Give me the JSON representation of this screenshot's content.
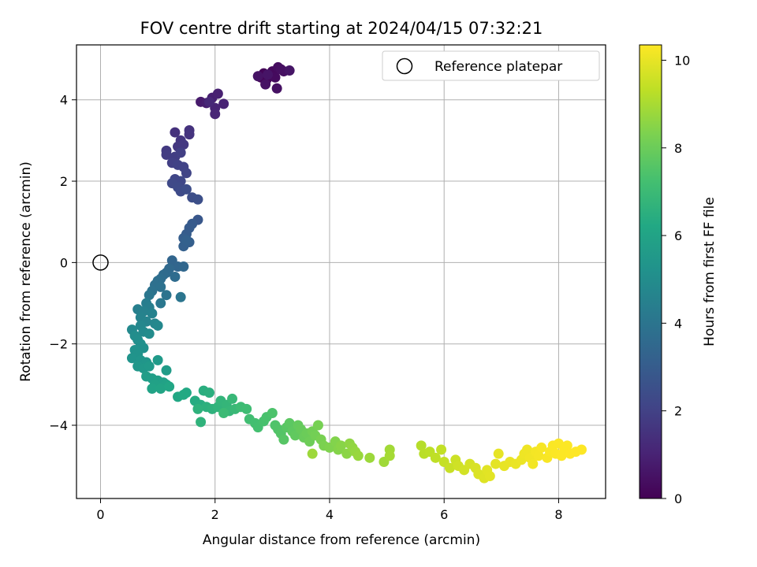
{
  "chart_data": {
    "type": "scatter",
    "title": "FOV centre drift starting at 2024/04/15 07:32:21",
    "xlabel": "Angular distance from reference (arcmin)",
    "ylabel": "Rotation from reference (arcmin)",
    "colorbar_label": "Hours from first FF file",
    "xlim": [
      -0.42,
      8.82
    ],
    "ylim": [
      -5.8,
      5.35
    ],
    "clim": [
      0,
      10.35
    ],
    "xticks": [
      0,
      2,
      4,
      6,
      8
    ],
    "yticks": [
      -4,
      -2,
      0,
      2,
      4
    ],
    "cticks": [
      0,
      2,
      4,
      6,
      8,
      10
    ],
    "grid": true,
    "colormap": "viridis",
    "legend": {
      "position": "top-right",
      "entries": [
        "Reference platepar"
      ]
    },
    "reference_point": {
      "x": 0,
      "y": 0
    },
    "series": [
      {
        "points": [
          {
            "x": 2.8,
            "y": 4.55,
            "t": 0.05
          },
          {
            "x": 2.85,
            "y": 4.65,
            "t": 0.1
          },
          {
            "x": 2.9,
            "y": 4.5,
            "t": 0.15
          },
          {
            "x": 2.95,
            "y": 4.6,
            "t": 0.2
          },
          {
            "x": 3.0,
            "y": 4.7,
            "t": 0.25
          },
          {
            "x": 3.05,
            "y": 4.55,
            "t": 0.3
          },
          {
            "x": 3.1,
            "y": 4.8,
            "t": 0.35
          },
          {
            "x": 3.15,
            "y": 4.75,
            "t": 0.4
          },
          {
            "x": 3.2,
            "y": 4.7,
            "t": 0.45
          },
          {
            "x": 3.08,
            "y": 4.28,
            "t": 0.48
          },
          {
            "x": 2.88,
            "y": 4.38,
            "t": 0.5
          },
          {
            "x": 2.75,
            "y": 4.58,
            "t": 0.52
          },
          {
            "x": 2.92,
            "y": 4.62,
            "t": 0.55
          },
          {
            "x": 3.3,
            "y": 4.72,
            "t": 0.58
          },
          {
            "x": 1.75,
            "y": 3.95,
            "t": 0.75
          },
          {
            "x": 1.85,
            "y": 3.92,
            "t": 0.85
          },
          {
            "x": 1.95,
            "y": 4.05,
            "t": 0.9
          },
          {
            "x": 2.05,
            "y": 4.15,
            "t": 0.95
          },
          {
            "x": 2.15,
            "y": 3.9,
            "t": 1.0
          },
          {
            "x": 2.0,
            "y": 3.8,
            "t": 1.05
          },
          {
            "x": 2.0,
            "y": 3.65,
            "t": 1.1
          },
          {
            "x": 1.9,
            "y": 3.95,
            "t": 1.15
          },
          {
            "x": 1.3,
            "y": 3.2,
            "t": 1.45
          },
          {
            "x": 1.55,
            "y": 3.25,
            "t": 1.5
          },
          {
            "x": 1.55,
            "y": 3.15,
            "t": 1.55
          },
          {
            "x": 1.4,
            "y": 3.0,
            "t": 1.6
          },
          {
            "x": 1.35,
            "y": 2.85,
            "t": 1.65
          },
          {
            "x": 1.45,
            "y": 2.9,
            "t": 1.7
          },
          {
            "x": 1.15,
            "y": 2.75,
            "t": 1.75
          },
          {
            "x": 1.15,
            "y": 2.65,
            "t": 1.8
          },
          {
            "x": 1.3,
            "y": 2.6,
            "t": 1.85
          },
          {
            "x": 1.4,
            "y": 2.7,
            "t": 1.9
          },
          {
            "x": 1.25,
            "y": 2.45,
            "t": 1.95
          },
          {
            "x": 1.35,
            "y": 2.4,
            "t": 2.0
          },
          {
            "x": 1.45,
            "y": 2.35,
            "t": 2.05
          },
          {
            "x": 1.5,
            "y": 2.2,
            "t": 2.1
          },
          {
            "x": 1.3,
            "y": 2.05,
            "t": 2.15
          },
          {
            "x": 1.4,
            "y": 2.0,
            "t": 2.2
          },
          {
            "x": 1.25,
            "y": 1.95,
            "t": 2.25
          },
          {
            "x": 1.35,
            "y": 1.85,
            "t": 2.3
          },
          {
            "x": 1.4,
            "y": 1.75,
            "t": 2.35
          },
          {
            "x": 1.5,
            "y": 1.8,
            "t": 2.4
          },
          {
            "x": 1.6,
            "y": 1.6,
            "t": 2.45
          },
          {
            "x": 1.7,
            "y": 1.55,
            "t": 2.5
          },
          {
            "x": 1.7,
            "y": 1.05,
            "t": 2.8
          },
          {
            "x": 1.6,
            "y": 0.95,
            "t": 2.9
          },
          {
            "x": 1.55,
            "y": 0.85,
            "t": 2.95
          },
          {
            "x": 1.5,
            "y": 0.7,
            "t": 3.0
          },
          {
            "x": 1.45,
            "y": 0.6,
            "t": 3.05
          },
          {
            "x": 1.55,
            "y": 0.5,
            "t": 3.1
          },
          {
            "x": 1.45,
            "y": 0.4,
            "t": 3.15
          },
          {
            "x": 1.5,
            "y": 0.55,
            "t": 3.2
          },
          {
            "x": 1.25,
            "y": 0.05,
            "t": 3.35
          },
          {
            "x": 1.35,
            "y": -0.1,
            "t": 3.4
          },
          {
            "x": 1.45,
            "y": -0.1,
            "t": 3.45
          },
          {
            "x": 1.2,
            "y": -0.15,
            "t": 3.5
          },
          {
            "x": 1.15,
            "y": -0.25,
            "t": 3.55
          },
          {
            "x": 1.1,
            "y": -0.3,
            "t": 3.6
          },
          {
            "x": 1.3,
            "y": -0.35,
            "t": 3.65
          },
          {
            "x": 1.05,
            "y": -0.4,
            "t": 3.7
          },
          {
            "x": 1.0,
            "y": -0.45,
            "t": 3.75
          },
          {
            "x": 0.95,
            "y": -0.55,
            "t": 3.8
          },
          {
            "x": 1.05,
            "y": -0.6,
            "t": 3.85
          },
          {
            "x": 0.9,
            "y": -0.7,
            "t": 3.9
          },
          {
            "x": 1.15,
            "y": -0.8,
            "t": 3.95
          },
          {
            "x": 1.4,
            "y": -0.85,
            "t": 4.0
          },
          {
            "x": 0.85,
            "y": -0.8,
            "t": 4.05
          },
          {
            "x": 1.05,
            "y": -1.0,
            "t": 4.1
          },
          {
            "x": 0.8,
            "y": -1.0,
            "t": 4.35
          },
          {
            "x": 0.85,
            "y": -1.1,
            "t": 4.4
          },
          {
            "x": 0.65,
            "y": -1.15,
            "t": 4.45
          },
          {
            "x": 0.75,
            "y": -1.2,
            "t": 4.5
          },
          {
            "x": 0.9,
            "y": -1.25,
            "t": 4.55
          },
          {
            "x": 0.7,
            "y": -1.35,
            "t": 4.6
          },
          {
            "x": 0.8,
            "y": -1.45,
            "t": 4.65
          },
          {
            "x": 0.95,
            "y": -1.5,
            "t": 4.7
          },
          {
            "x": 0.7,
            "y": -1.55,
            "t": 4.75
          },
          {
            "x": 1.0,
            "y": -1.55,
            "t": 4.8
          },
          {
            "x": 0.55,
            "y": -1.65,
            "t": 4.85
          },
          {
            "x": 0.75,
            "y": -1.7,
            "t": 4.9
          },
          {
            "x": 0.85,
            "y": -1.75,
            "t": 4.95
          },
          {
            "x": 0.6,
            "y": -1.8,
            "t": 5.0
          },
          {
            "x": 0.65,
            "y": -1.9,
            "t": 5.05
          },
          {
            "x": 0.7,
            "y": -2.0,
            "t": 5.1
          },
          {
            "x": 0.75,
            "y": -2.1,
            "t": 5.15
          },
          {
            "x": 0.6,
            "y": -2.15,
            "t": 5.2
          },
          {
            "x": 0.65,
            "y": -2.25,
            "t": 5.25
          },
          {
            "x": 0.55,
            "y": -2.35,
            "t": 5.3
          },
          {
            "x": 0.7,
            "y": -2.4,
            "t": 5.35
          },
          {
            "x": 0.8,
            "y": -2.45,
            "t": 5.4
          },
          {
            "x": 0.65,
            "y": -2.55,
            "t": 5.45
          },
          {
            "x": 0.75,
            "y": -2.6,
            "t": 5.5
          },
          {
            "x": 0.85,
            "y": -2.55,
            "t": 5.55
          },
          {
            "x": 1.0,
            "y": -2.4,
            "t": 5.6
          },
          {
            "x": 1.15,
            "y": -2.65,
            "t": 5.65
          },
          {
            "x": 0.8,
            "y": -2.8,
            "t": 5.7
          },
          {
            "x": 0.9,
            "y": -2.85,
            "t": 5.75
          },
          {
            "x": 1.0,
            "y": -2.9,
            "t": 5.8
          },
          {
            "x": 1.1,
            "y": -2.95,
            "t": 5.85
          },
          {
            "x": 0.95,
            "y": -3.0,
            "t": 5.9
          },
          {
            "x": 1.15,
            "y": -3.0,
            "t": 5.95
          },
          {
            "x": 0.9,
            "y": -3.1,
            "t": 6.0
          },
          {
            "x": 1.05,
            "y": -3.1,
            "t": 6.05
          },
          {
            "x": 1.2,
            "y": -3.05,
            "t": 6.1
          },
          {
            "x": 1.35,
            "y": -3.3,
            "t": 6.15
          },
          {
            "x": 1.5,
            "y": -3.2,
            "t": 6.2
          },
          {
            "x": 1.45,
            "y": -3.25,
            "t": 6.25
          },
          {
            "x": 1.65,
            "y": -3.4,
            "t": 6.35
          },
          {
            "x": 1.75,
            "y": -3.5,
            "t": 6.4
          },
          {
            "x": 1.8,
            "y": -3.15,
            "t": 6.45
          },
          {
            "x": 1.9,
            "y": -3.2,
            "t": 6.5
          },
          {
            "x": 1.85,
            "y": -3.55,
            "t": 6.55
          },
          {
            "x": 1.95,
            "y": -3.6,
            "t": 6.6
          },
          {
            "x": 1.7,
            "y": -3.6,
            "t": 6.62
          },
          {
            "x": 1.75,
            "y": -3.92,
            "t": 6.65
          },
          {
            "x": 2.05,
            "y": -3.55,
            "t": 6.7
          },
          {
            "x": 2.1,
            "y": -3.4,
            "t": 6.75
          },
          {
            "x": 2.2,
            "y": -3.5,
            "t": 6.8
          },
          {
            "x": 2.25,
            "y": -3.65,
            "t": 6.85
          },
          {
            "x": 2.3,
            "y": -3.35,
            "t": 6.9
          },
          {
            "x": 2.35,
            "y": -3.6,
            "t": 6.95
          },
          {
            "x": 2.15,
            "y": -3.7,
            "t": 7.0
          },
          {
            "x": 2.45,
            "y": -3.55,
            "t": 7.05
          },
          {
            "x": 2.55,
            "y": -3.6,
            "t": 7.1
          },
          {
            "x": 2.6,
            "y": -3.85,
            "t": 7.15
          },
          {
            "x": 2.7,
            "y": -3.95,
            "t": 7.2
          },
          {
            "x": 2.75,
            "y": -4.05,
            "t": 7.25
          },
          {
            "x": 2.85,
            "y": -3.9,
            "t": 7.3
          },
          {
            "x": 2.9,
            "y": -3.8,
            "t": 7.35
          },
          {
            "x": 3.0,
            "y": -3.7,
            "t": 7.4
          },
          {
            "x": 3.05,
            "y": -4.0,
            "t": 7.45
          },
          {
            "x": 3.1,
            "y": -4.1,
            "t": 7.5
          },
          {
            "x": 3.15,
            "y": -4.2,
            "t": 7.55
          },
          {
            "x": 3.2,
            "y": -4.35,
            "t": 7.6
          },
          {
            "x": 3.25,
            "y": -4.05,
            "t": 7.65
          },
          {
            "x": 3.3,
            "y": -3.95,
            "t": 7.7
          },
          {
            "x": 3.35,
            "y": -4.15,
            "t": 7.75
          },
          {
            "x": 3.4,
            "y": -4.25,
            "t": 7.8
          },
          {
            "x": 3.45,
            "y": -4.0,
            "t": 7.85
          },
          {
            "x": 3.5,
            "y": -4.1,
            "t": 7.9
          },
          {
            "x": 3.55,
            "y": -4.3,
            "t": 7.95
          },
          {
            "x": 3.6,
            "y": -4.2,
            "t": 8.0
          },
          {
            "x": 3.65,
            "y": -4.4,
            "t": 8.05
          },
          {
            "x": 3.7,
            "y": -4.15,
            "t": 8.1
          },
          {
            "x": 3.75,
            "y": -4.25,
            "t": 8.15
          },
          {
            "x": 3.8,
            "y": -4.0,
            "t": 8.2
          },
          {
            "x": 3.85,
            "y": -4.35,
            "t": 8.25
          },
          {
            "x": 3.9,
            "y": -4.5,
            "t": 8.3
          },
          {
            "x": 4.0,
            "y": -4.55,
            "t": 8.35
          },
          {
            "x": 4.1,
            "y": -4.4,
            "t": 8.4
          },
          {
            "x": 4.15,
            "y": -4.6,
            "t": 8.45
          },
          {
            "x": 4.2,
            "y": -4.5,
            "t": 8.5
          },
          {
            "x": 4.3,
            "y": -4.7,
            "t": 8.55
          },
          {
            "x": 4.35,
            "y": -4.45,
            "t": 8.6
          },
          {
            "x": 4.4,
            "y": -4.55,
            "t": 8.65
          },
          {
            "x": 4.45,
            "y": -4.65,
            "t": 8.7
          },
          {
            "x": 4.5,
            "y": -4.75,
            "t": 8.75
          },
          {
            "x": 4.7,
            "y": -4.8,
            "t": 8.8
          },
          {
            "x": 3.7,
            "y": -4.7,
            "t": 8.82
          },
          {
            "x": 4.95,
            "y": -4.9,
            "t": 8.85
          },
          {
            "x": 5.05,
            "y": -4.6,
            "t": 8.9
          },
          {
            "x": 5.05,
            "y": -4.75,
            "t": 8.95
          },
          {
            "x": 5.6,
            "y": -4.5,
            "t": 9.2
          },
          {
            "x": 5.65,
            "y": -4.7,
            "t": 9.25
          },
          {
            "x": 5.75,
            "y": -4.65,
            "t": 9.3
          },
          {
            "x": 5.85,
            "y": -4.8,
            "t": 9.35
          },
          {
            "x": 5.95,
            "y": -4.6,
            "t": 9.4
          },
          {
            "x": 6.0,
            "y": -4.9,
            "t": 9.45
          },
          {
            "x": 6.1,
            "y": -5.05,
            "t": 9.5
          },
          {
            "x": 6.2,
            "y": -4.85,
            "t": 9.55
          },
          {
            "x": 6.25,
            "y": -5.0,
            "t": 9.6
          },
          {
            "x": 6.35,
            "y": -5.1,
            "t": 9.65
          },
          {
            "x": 6.45,
            "y": -4.95,
            "t": 9.7
          },
          {
            "x": 6.55,
            "y": -5.05,
            "t": 9.75
          },
          {
            "x": 6.6,
            "y": -5.2,
            "t": 9.8
          },
          {
            "x": 6.7,
            "y": -5.3,
            "t": 9.85
          },
          {
            "x": 6.75,
            "y": -5.1,
            "t": 9.9
          },
          {
            "x": 6.8,
            "y": -5.25,
            "t": 9.92
          },
          {
            "x": 6.9,
            "y": -4.95,
            "t": 9.95
          },
          {
            "x": 6.95,
            "y": -4.7,
            "t": 9.98
          },
          {
            "x": 7.05,
            "y": -5.0,
            "t": 10.0
          },
          {
            "x": 7.15,
            "y": -4.9,
            "t": 10.02
          },
          {
            "x": 7.25,
            "y": -4.95,
            "t": 10.05
          },
          {
            "x": 7.35,
            "y": -4.85,
            "t": 10.08
          },
          {
            "x": 7.4,
            "y": -4.7,
            "t": 10.1
          },
          {
            "x": 7.45,
            "y": -4.6,
            "t": 10.12
          },
          {
            "x": 7.5,
            "y": -4.8,
            "t": 10.15
          },
          {
            "x": 7.55,
            "y": -4.95,
            "t": 10.18
          },
          {
            "x": 7.6,
            "y": -4.65,
            "t": 10.2
          },
          {
            "x": 7.65,
            "y": -4.75,
            "t": 10.22
          },
          {
            "x": 7.7,
            "y": -4.55,
            "t": 10.25
          },
          {
            "x": 7.8,
            "y": -4.8,
            "t": 10.27
          },
          {
            "x": 7.85,
            "y": -4.65,
            "t": 10.29
          },
          {
            "x": 7.9,
            "y": -4.5,
            "t": 10.3
          },
          {
            "x": 7.95,
            "y": -4.7,
            "t": 10.31
          },
          {
            "x": 8.0,
            "y": -4.45,
            "t": 10.32
          },
          {
            "x": 8.05,
            "y": -4.75,
            "t": 10.33
          },
          {
            "x": 8.1,
            "y": -4.6,
            "t": 10.34
          },
          {
            "x": 8.15,
            "y": -4.5,
            "t": 10.34
          },
          {
            "x": 8.2,
            "y": -4.7,
            "t": 10.35
          },
          {
            "x": 8.3,
            "y": -4.65,
            "t": 10.35
          },
          {
            "x": 8.4,
            "y": -4.6,
            "t": 10.35
          }
        ]
      }
    ]
  }
}
